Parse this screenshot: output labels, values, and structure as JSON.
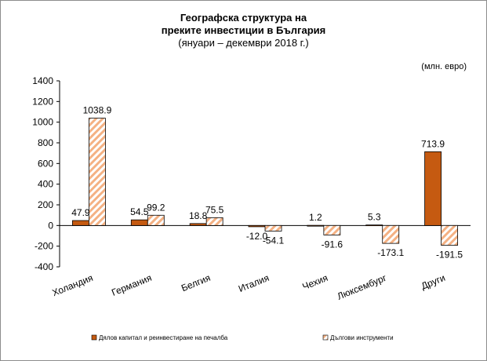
{
  "colors": {
    "series1": "#c55a11",
    "series2_stripe": "#f4b183",
    "axis": "#000000"
  },
  "chart_data": {
    "type": "bar",
    "title_lines": [
      "Географска структура на",
      "преките инвестиции в България",
      "(януари – декември 2018 г.)"
    ],
    "unit_label": "(млн. евро)",
    "categories": [
      "Холандия",
      "Германия",
      "Белгия",
      "Италия",
      "Чехия",
      "Люксембург",
      "Други"
    ],
    "series": [
      {
        "name": "Дялов капитал и реинвестиране на печалба",
        "values": [
          47.9,
          54.5,
          18.8,
          -12.0,
          1.2,
          5.3,
          713.9
        ],
        "labels": [
          "47.9",
          "54.5",
          "18.8",
          "-12.0",
          "1.2",
          "5.3",
          "713.9"
        ]
      },
      {
        "name": "Дългови инструменти",
        "values": [
          1038.9,
          99.2,
          75.5,
          -54.1,
          -91.6,
          -173.1,
          -191.5
        ],
        "labels": [
          "1038.9",
          "99.2",
          "75.5",
          "-54.1",
          "-91.6",
          "-173.1",
          "-191.5"
        ]
      }
    ],
    "ylim": [
      -400,
      1400
    ],
    "yticks": [
      1400,
      1200,
      1000,
      800,
      600,
      400,
      200,
      0,
      -200,
      -400
    ],
    "ytick_labels": [
      "1400",
      "1200",
      "1000",
      "800",
      "600",
      "400",
      "200",
      "0",
      "-200",
      "-400"
    ],
    "legend_position": "bottom"
  }
}
